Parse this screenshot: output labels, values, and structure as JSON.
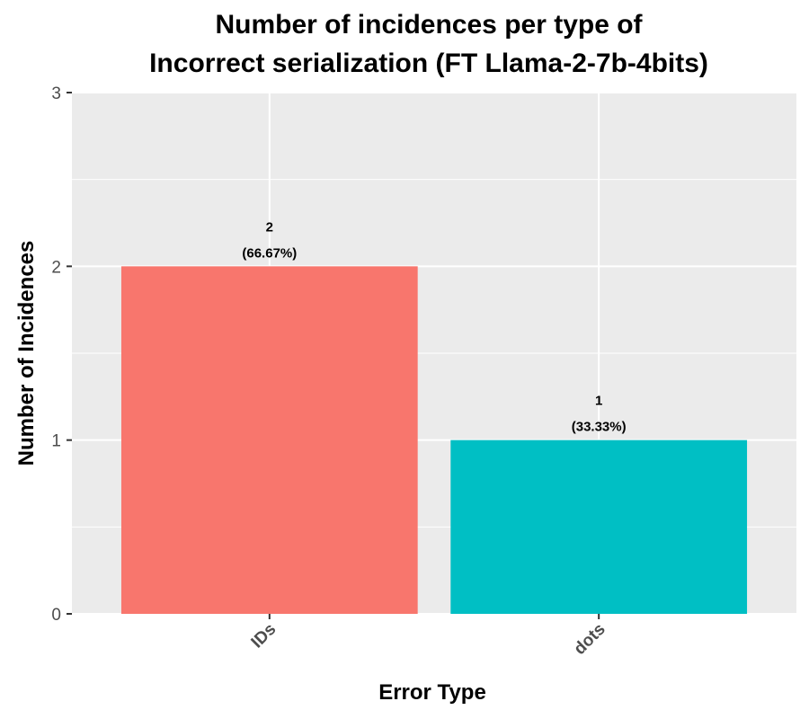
{
  "chart_data": {
    "type": "bar",
    "title": [
      "Number of incidences per type of",
      "Incorrect serialization (FT Llama-2-7b-4bits)"
    ],
    "xlabel": "Error Type",
    "ylabel": "Number of Incidences",
    "categories": [
      "IDs",
      "dots"
    ],
    "values": [
      2,
      1
    ],
    "value_labels": [
      "2",
      "1"
    ],
    "percent_labels": [
      "(66.67%)",
      "(33.33%)"
    ],
    "colors": [
      "#F8766D",
      "#00BFC4"
    ],
    "ylim": [
      0,
      3
    ],
    "yticks": [
      0,
      1,
      2,
      3
    ],
    "grid": true,
    "legend": "none",
    "panel_background": "#EBEBEB",
    "grid_color": "#FFFFFF"
  }
}
